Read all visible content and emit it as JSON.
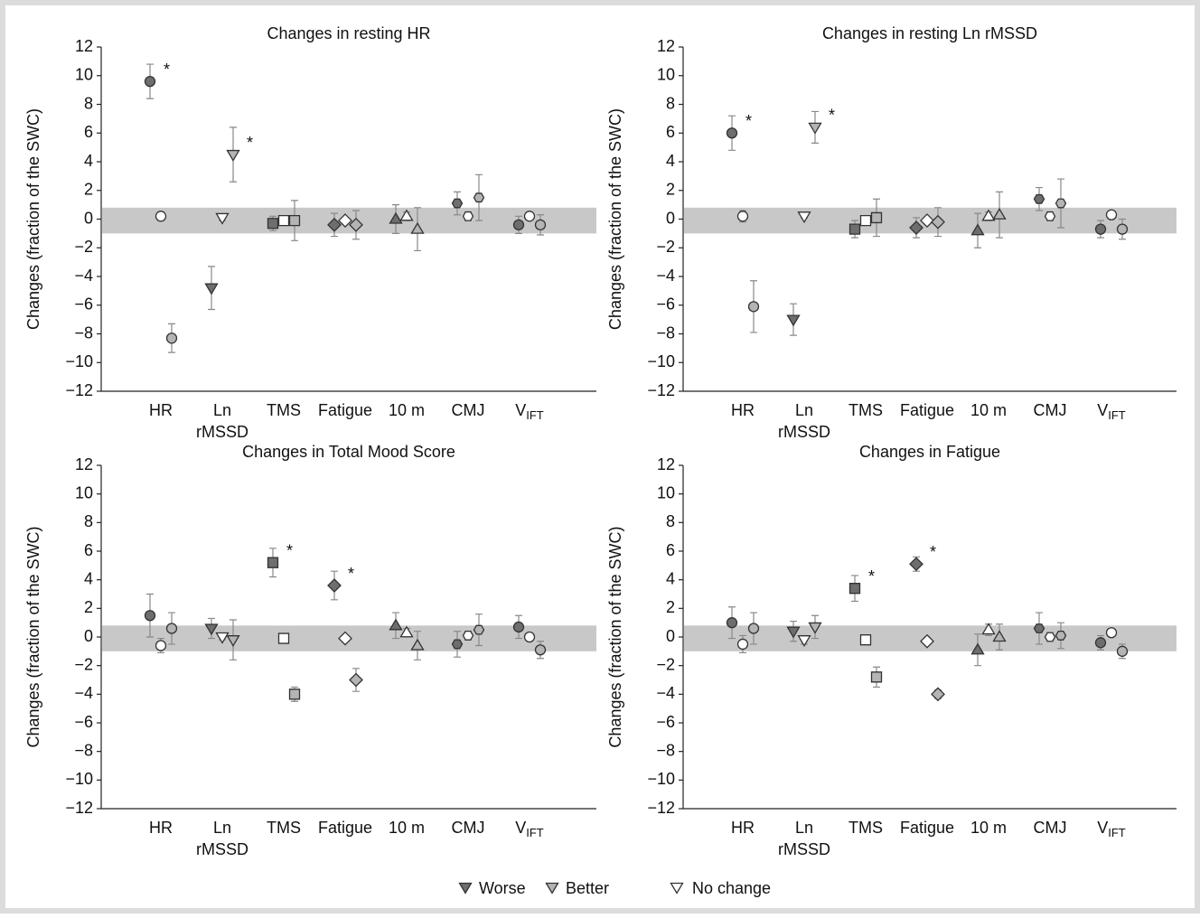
{
  "chart_data": [
    {
      "type": "scatter-errorbar",
      "title": "Changes in resting HR",
      "ylabel": "Changes (fraction of the SWC)",
      "categories": [
        "HR",
        {
          "line1": "Ln",
          "line2": "rMSSD"
        },
        "TMS",
        "Fatigue",
        "10 m",
        "CMJ",
        {
          "main": "V",
          "sub": "IFT"
        }
      ],
      "markers": [
        "circle",
        "triangle-down",
        "square",
        "diamond",
        "triangle-up",
        "hexagon",
        "circle"
      ],
      "ylim": [
        -12,
        12
      ],
      "yticks": [
        {
          "value": -12,
          "label": "−12"
        },
        {
          "value": -10,
          "label": "−10"
        },
        {
          "value": -8,
          "label": "−8"
        },
        {
          "value": -6,
          "label": "−6"
        },
        {
          "value": -4,
          "label": "−4"
        },
        {
          "value": -2,
          "label": "−2"
        },
        0,
        2,
        4,
        6,
        8,
        10,
        12
      ],
      "swc_band": [
        -1,
        0.8
      ],
      "series": [
        {
          "name": "Worse",
          "color": "#6e6e6e",
          "values": [
            9.6,
            -4.8,
            -0.3,
            -0.4,
            0.0,
            1.1,
            -0.4
          ],
          "errors": [
            1.2,
            1.5,
            0.5,
            0.8,
            1.0,
            0.8,
            0.6
          ],
          "significance": [
            "*",
            null,
            null,
            null,
            null,
            null,
            null
          ]
        },
        {
          "name": "No change",
          "color": "#ffffff",
          "values": [
            0.2,
            0.1,
            -0.1,
            -0.1,
            0.2,
            0.2,
            0.2
          ],
          "errors": [
            0.3,
            0.2,
            0.2,
            0.2,
            0.3,
            0.3,
            0.2
          ],
          "significance": [
            null,
            null,
            null,
            null,
            null,
            null,
            null
          ]
        },
        {
          "name": "Better",
          "color": "#b4b4b4",
          "values": [
            -8.3,
            4.5,
            -0.1,
            -0.4,
            -0.7,
            1.5,
            -0.4
          ],
          "errors": [
            1.0,
            1.9,
            1.4,
            1.0,
            1.5,
            1.6,
            0.7
          ],
          "significance": [
            null,
            "*",
            null,
            null,
            null,
            null,
            null
          ]
        }
      ]
    },
    {
      "type": "scatter-errorbar",
      "title": "Changes in resting Ln rMSSD",
      "ylabel": "Changes (fraction of the SWC)",
      "categories": [
        "HR",
        {
          "line1": "Ln",
          "line2": "rMSSD"
        },
        "TMS",
        "Fatigue",
        "10 m",
        "CMJ",
        {
          "main": "V",
          "sub": "IFT"
        }
      ],
      "markers": [
        "circle",
        "triangle-down",
        "square",
        "diamond",
        "triangle-up",
        "hexagon",
        "circle"
      ],
      "ylim": [
        -12,
        12
      ],
      "yticks": [
        {
          "value": -12,
          "label": "−12"
        },
        {
          "value": -10,
          "label": "−10"
        },
        {
          "value": -8,
          "label": "−8"
        },
        {
          "value": -6,
          "label": "−6"
        },
        {
          "value": -4,
          "label": "−4"
        },
        {
          "value": -2,
          "label": "−2"
        },
        0,
        2,
        4,
        6,
        8,
        10,
        12
      ],
      "swc_band": [
        -1,
        0.8
      ],
      "series": [
        {
          "name": "Worse",
          "color": "#6e6e6e",
          "values": [
            6.0,
            -7.0,
            -0.7,
            -0.6,
            -0.8,
            1.4,
            -0.7
          ],
          "errors": [
            1.2,
            1.1,
            0.6,
            0.7,
            1.2,
            0.8,
            0.6
          ],
          "significance": [
            "*",
            null,
            null,
            null,
            null,
            null,
            null
          ]
        },
        {
          "name": "No change",
          "color": "#ffffff",
          "values": [
            0.2,
            0.2,
            -0.1,
            -0.1,
            0.2,
            0.2,
            0.3
          ],
          "errors": [
            0.4,
            0.1,
            0.2,
            0.2,
            0.3,
            0.3,
            0.2
          ],
          "significance": [
            null,
            null,
            null,
            null,
            null,
            null,
            null
          ]
        },
        {
          "name": "Better",
          "color": "#b4b4b4",
          "values": [
            -6.1,
            6.4,
            0.1,
            -0.2,
            0.3,
            1.1,
            -0.7
          ],
          "errors": [
            1.8,
            1.1,
            1.3,
            1.0,
            1.6,
            1.7,
            0.7
          ],
          "significance": [
            null,
            "*",
            null,
            null,
            null,
            null,
            null
          ]
        }
      ]
    },
    {
      "type": "scatter-errorbar",
      "title": "Changes in Total Mood Score",
      "ylabel": "Changes (fraction of the SWC)",
      "categories": [
        "HR",
        {
          "line1": "Ln",
          "line2": "rMSSD"
        },
        "TMS",
        "Fatigue",
        "10 m",
        "CMJ",
        {
          "main": "V",
          "sub": "IFT"
        }
      ],
      "markers": [
        "circle",
        "triangle-down",
        "square",
        "diamond",
        "triangle-up",
        "hexagon",
        "circle"
      ],
      "ylim": [
        -12,
        12
      ],
      "yticks": [
        {
          "value": -12,
          "label": "−12"
        },
        {
          "value": -10,
          "label": "−10"
        },
        {
          "value": -8,
          "label": "−8"
        },
        {
          "value": -6,
          "label": "−6"
        },
        {
          "value": -4,
          "label": "−4"
        },
        {
          "value": -2,
          "label": "−2"
        },
        0,
        2,
        4,
        6,
        8,
        10,
        12
      ],
      "swc_band": [
        -1,
        0.8
      ],
      "series": [
        {
          "name": "Worse",
          "color": "#6e6e6e",
          "values": [
            1.5,
            0.6,
            5.2,
            3.6,
            0.8,
            -0.5,
            0.7
          ],
          "errors": [
            1.5,
            0.7,
            1.0,
            1.0,
            0.9,
            0.9,
            0.8
          ],
          "significance": [
            null,
            null,
            "*",
            "*",
            null,
            null,
            null
          ]
        },
        {
          "name": "No change",
          "color": "#ffffff",
          "values": [
            -0.6,
            0.0,
            -0.1,
            -0.1,
            0.3,
            0.1,
            0.0
          ],
          "errors": [
            0.5,
            0.2,
            0.2,
            0.2,
            0.3,
            0.3,
            0.2
          ],
          "significance": [
            null,
            null,
            null,
            null,
            null,
            null,
            null
          ]
        },
        {
          "name": "Better",
          "color": "#b4b4b4",
          "values": [
            0.6,
            -0.2,
            -4.0,
            -3.0,
            -0.6,
            0.5,
            -0.9
          ],
          "errors": [
            1.1,
            1.4,
            0.5,
            0.8,
            1.0,
            1.1,
            0.6
          ],
          "significance": [
            null,
            null,
            null,
            null,
            null,
            null,
            null
          ]
        }
      ]
    },
    {
      "type": "scatter-errorbar",
      "title": "Changes in Fatigue",
      "ylabel": "Changes (fraction of the SWC)",
      "categories": [
        "HR",
        {
          "line1": "Ln",
          "line2": "rMSSD"
        },
        "TMS",
        "Fatigue",
        "10 m",
        "CMJ",
        {
          "main": "V",
          "sub": "IFT"
        }
      ],
      "markers": [
        "circle",
        "triangle-down",
        "square",
        "diamond",
        "triangle-up",
        "hexagon",
        "circle"
      ],
      "ylim": [
        -12,
        12
      ],
      "yticks": [
        {
          "value": -12,
          "label": "−12"
        },
        {
          "value": -10,
          "label": "−10"
        },
        {
          "value": -8,
          "label": "−8"
        },
        {
          "value": -6,
          "label": "−6"
        },
        {
          "value": -4,
          "label": "−4"
        },
        {
          "value": -2,
          "label": "−2"
        },
        0,
        2,
        4,
        6,
        8,
        10,
        12
      ],
      "swc_band": [
        -1,
        0.8
      ],
      "series": [
        {
          "name": "Worse",
          "color": "#6e6e6e",
          "values": [
            1.0,
            0.4,
            3.4,
            5.1,
            -0.9,
            0.6,
            -0.4
          ],
          "errors": [
            1.1,
            0.7,
            0.9,
            0.5,
            1.1,
            1.1,
            0.5
          ],
          "significance": [
            null,
            null,
            "*",
            "*",
            null,
            null,
            null
          ]
        },
        {
          "name": "No change",
          "color": "#ffffff",
          "values": [
            -0.5,
            -0.2,
            -0.2,
            -0.3,
            0.5,
            0.0,
            0.3
          ],
          "errors": [
            0.6,
            0.3,
            0.2,
            0.2,
            0.4,
            0.3,
            0.2
          ],
          "significance": [
            null,
            null,
            null,
            null,
            null,
            null,
            null
          ]
        },
        {
          "name": "Better",
          "color": "#b4b4b4",
          "values": [
            0.6,
            0.7,
            -2.8,
            -4.0,
            0.0,
            0.1,
            -1.0
          ],
          "errors": [
            1.1,
            0.8,
            0.7,
            0.3,
            0.9,
            0.9,
            0.5
          ],
          "significance": [
            null,
            null,
            null,
            null,
            null,
            null,
            null
          ]
        }
      ]
    }
  ]
}
